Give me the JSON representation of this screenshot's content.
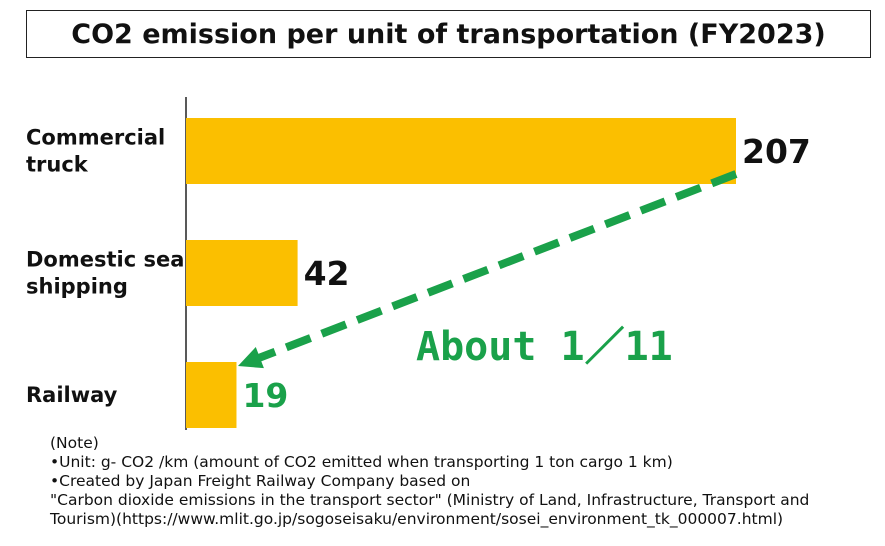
{
  "chart_data": {
    "type": "bar",
    "orientation": "horizontal",
    "title": "CO2 emission per unit of transportation (FY2023)",
    "categories": [
      [
        "Commercial",
        "truck"
      ],
      [
        "Domestic sea",
        "shipping"
      ],
      [
        "Railway"
      ]
    ],
    "values": [
      207,
      42,
      19
    ],
    "value_labels": [
      "207",
      "42",
      "19"
    ],
    "bar_color": "#FBBF00",
    "highlight_value_color": "#1aa14a",
    "annotation": "About 1／11",
    "annotation_color": "#1aa14a",
    "arrow": {
      "from": "Commercial truck",
      "to": "Railway",
      "style": "dashed",
      "color": "#1aa14a"
    },
    "xlim": [
      0,
      207
    ],
    "grid": false
  },
  "notes": [
    "(Note)",
    "•Unit: g- CO2 /km (amount of CO2 emitted when transporting 1 ton cargo 1 km)",
    "•Created by Japan Freight Railway Company based on",
    "\"Carbon dioxide emissions in the transport sector\" (Ministry of Land, Infrastructure, Transport and",
    "Tourism)(https://www.mlit.go.jp/sogoseisaku/environment/sosei_environment_tk_000007.html)"
  ]
}
